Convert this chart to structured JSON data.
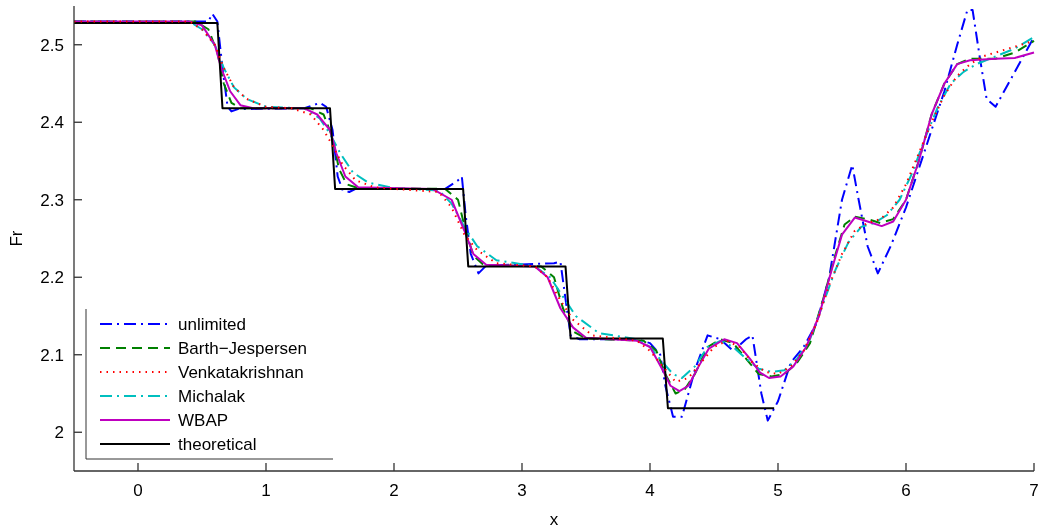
{
  "chart_data": {
    "type": "line",
    "xlabel": "x",
    "ylabel": "Fr",
    "xlim": [
      -0.5,
      7
    ],
    "ylim": [
      1.95,
      2.55
    ],
    "xticks": [
      0,
      1,
      2,
      3,
      4,
      5,
      6,
      7
    ],
    "yticks": [
      2,
      2.1,
      2.2,
      2.3,
      2.4,
      2.5
    ],
    "grid": false,
    "legend": "bottom left",
    "marker": "none",
    "series": [
      {
        "name": "unlimited",
        "color": "#0000ff",
        "line_style": "dashdot",
        "x": [
          -0.5,
          0.55,
          0.58,
          0.62,
          0.66,
          0.7,
          0.73,
          0.78,
          1.3,
          1.42,
          1.47,
          1.52,
          1.56,
          1.6,
          1.65,
          1.7,
          2.4,
          2.5,
          2.53,
          2.56,
          2.6,
          2.66,
          2.72,
          3.25,
          3.3,
          3.35,
          3.38,
          3.45,
          3.9,
          4.0,
          4.08,
          4.12,
          4.18,
          4.25,
          4.35,
          4.45,
          4.55,
          4.65,
          4.75,
          4.8,
          4.87,
          4.92,
          5.0,
          5.1,
          5.2,
          5.3,
          5.4,
          5.5,
          5.58,
          5.63,
          5.7,
          5.78,
          5.88,
          6.0,
          6.1,
          6.2,
          6.3,
          6.4,
          6.48,
          6.52,
          6.58,
          6.63,
          6.7,
          6.8,
          6.9,
          7.0
        ],
        "values": [
          2.53,
          2.53,
          2.54,
          2.53,
          2.47,
          2.42,
          2.414,
          2.417,
          2.418,
          2.425,
          2.42,
          2.39,
          2.33,
          2.312,
          2.31,
          2.314,
          2.314,
          2.325,
          2.33,
          2.28,
          2.23,
          2.205,
          2.215,
          2.218,
          2.22,
          2.16,
          2.125,
          2.12,
          2.12,
          2.115,
          2.1,
          2.06,
          2.02,
          2.02,
          2.08,
          2.125,
          2.12,
          2.105,
          2.12,
          2.125,
          2.05,
          2.015,
          2.04,
          2.09,
          2.11,
          2.14,
          2.2,
          2.3,
          2.345,
          2.3,
          2.24,
          2.205,
          2.24,
          2.29,
          2.34,
          2.39,
          2.44,
          2.5,
          2.545,
          2.545,
          2.48,
          2.43,
          2.42,
          2.45,
          2.48,
          2.51
        ]
      },
      {
        "name": "Barth−Jespersen",
        "color": "#008000",
        "line_style": "dashed",
        "x": [
          -0.5,
          0.45,
          0.55,
          0.62,
          0.67,
          0.73,
          0.8,
          0.9,
          1.35,
          1.45,
          1.52,
          1.57,
          1.63,
          1.72,
          2.4,
          2.5,
          2.56,
          2.62,
          2.7,
          3.15,
          3.25,
          3.32,
          3.4,
          3.5,
          3.95,
          4.05,
          4.12,
          4.2,
          4.27,
          4.35,
          4.45,
          4.55,
          4.65,
          4.75,
          4.85,
          4.95,
          5.05,
          5.15,
          5.25,
          5.35,
          5.45,
          5.52,
          5.6,
          5.7,
          5.8,
          5.9,
          6.0,
          6.1,
          6.2,
          6.3,
          6.4,
          6.5,
          6.7,
          6.85,
          7.0
        ],
        "values": [
          2.53,
          2.53,
          2.52,
          2.49,
          2.45,
          2.425,
          2.418,
          2.418,
          2.418,
          2.41,
          2.38,
          2.34,
          2.32,
          2.315,
          2.314,
          2.3,
          2.26,
          2.228,
          2.216,
          2.214,
          2.2,
          2.16,
          2.13,
          2.121,
          2.118,
          2.105,
          2.075,
          2.05,
          2.055,
          2.075,
          2.11,
          2.12,
          2.115,
          2.095,
          2.075,
          2.072,
          2.075,
          2.09,
          2.115,
          2.17,
          2.23,
          2.268,
          2.278,
          2.275,
          2.27,
          2.275,
          2.3,
          2.35,
          2.41,
          2.45,
          2.475,
          2.482,
          2.482,
          2.49,
          2.505
        ]
      },
      {
        "name": "Venkatakrishnan",
        "color": "#ff0000",
        "line_style": "dotted",
        "x": [
          -0.5,
          0.4,
          0.5,
          0.6,
          0.67,
          0.75,
          0.85,
          1.0,
          1.2,
          1.35,
          1.45,
          1.52,
          1.6,
          1.7,
          1.85,
          2.0,
          2.35,
          2.45,
          2.55,
          2.65,
          2.8,
          3.1,
          3.2,
          3.3,
          3.4,
          3.55,
          3.9,
          4.0,
          4.1,
          4.2,
          4.3,
          4.4,
          4.5,
          4.6,
          4.7,
          4.8,
          4.9,
          5.0,
          5.1,
          5.2,
          5.3,
          5.4,
          5.5,
          5.6,
          5.7,
          5.8,
          5.9,
          6.0,
          6.1,
          6.2,
          6.3,
          6.4,
          6.5,
          6.6,
          6.8,
          7.0
        ],
        "values": [
          2.53,
          2.53,
          2.52,
          2.5,
          2.47,
          2.445,
          2.43,
          2.42,
          2.418,
          2.41,
          2.39,
          2.37,
          2.345,
          2.325,
          2.316,
          2.314,
          2.31,
          2.29,
          2.255,
          2.235,
          2.218,
          2.214,
          2.2,
          2.17,
          2.145,
          2.125,
          2.118,
          2.105,
          2.085,
          2.065,
          2.07,
          2.09,
          2.11,
          2.118,
          2.11,
          2.09,
          2.078,
          2.075,
          2.085,
          2.105,
          2.14,
          2.19,
          2.23,
          2.26,
          2.27,
          2.275,
          2.29,
          2.32,
          2.36,
          2.4,
          2.435,
          2.46,
          2.475,
          2.485,
          2.495,
          2.505
        ]
      },
      {
        "name": "Michalak",
        "color": "#00bfbf",
        "line_style": "dashdot",
        "x": [
          -0.5,
          0.4,
          0.5,
          0.6,
          0.67,
          0.75,
          0.85,
          1.0,
          1.3,
          1.42,
          1.5,
          1.58,
          1.68,
          1.8,
          2.0,
          2.35,
          2.45,
          2.55,
          2.65,
          2.8,
          3.1,
          3.22,
          3.32,
          3.42,
          3.6,
          3.9,
          4.0,
          4.1,
          4.18,
          4.25,
          4.35,
          4.45,
          4.55,
          4.65,
          4.75,
          4.85,
          4.95,
          5.05,
          5.15,
          5.25,
          5.35,
          5.45,
          5.55,
          5.65,
          5.75,
          5.85,
          5.95,
          6.05,
          6.15,
          6.25,
          6.35,
          6.45,
          6.55,
          6.7,
          6.85,
          7.0
        ],
        "values": [
          2.53,
          2.53,
          2.52,
          2.5,
          2.47,
          2.445,
          2.43,
          2.42,
          2.418,
          2.405,
          2.385,
          2.36,
          2.335,
          2.322,
          2.315,
          2.312,
          2.295,
          2.265,
          2.24,
          2.222,
          2.214,
          2.2,
          2.175,
          2.15,
          2.128,
          2.12,
          2.11,
          2.09,
          2.075,
          2.07,
          2.085,
          2.11,
          2.118,
          2.11,
          2.095,
          2.082,
          2.078,
          2.08,
          2.095,
          2.12,
          2.165,
          2.21,
          2.245,
          2.265,
          2.27,
          2.28,
          2.3,
          2.335,
          2.38,
          2.42,
          2.45,
          2.465,
          2.475,
          2.485,
          2.495,
          2.51
        ]
      },
      {
        "name": "WBAP",
        "color": "#bf00bf",
        "line_style": "solid",
        "x": [
          -0.5,
          0.4,
          0.5,
          0.6,
          0.65,
          0.72,
          0.8,
          0.9,
          1.3,
          1.4,
          1.5,
          1.55,
          1.62,
          1.72,
          2.3,
          2.45,
          2.55,
          2.62,
          2.72,
          3.1,
          3.2,
          3.3,
          3.4,
          3.5,
          3.9,
          4.0,
          4.1,
          4.16,
          4.23,
          4.3,
          4.38,
          4.46,
          4.58,
          4.68,
          4.78,
          4.86,
          4.93,
          5.02,
          5.12,
          5.22,
          5.32,
          5.42,
          5.5,
          5.6,
          5.7,
          5.81,
          5.9,
          6.0,
          6.1,
          6.2,
          6.3,
          6.4,
          6.5,
          6.7,
          6.85,
          7.0
        ],
        "values": [
          2.53,
          2.53,
          2.525,
          2.5,
          2.47,
          2.44,
          2.422,
          2.418,
          2.418,
          2.41,
          2.39,
          2.36,
          2.33,
          2.316,
          2.314,
          2.3,
          2.26,
          2.23,
          2.216,
          2.214,
          2.2,
          2.16,
          2.135,
          2.122,
          2.118,
          2.11,
          2.08,
          2.06,
          2.053,
          2.06,
          2.085,
          2.108,
          2.12,
          2.115,
          2.095,
          2.077,
          2.07,
          2.072,
          2.085,
          2.11,
          2.15,
          2.21,
          2.255,
          2.277,
          2.272,
          2.266,
          2.272,
          2.3,
          2.35,
          2.41,
          2.45,
          2.475,
          2.48,
          2.482,
          2.483,
          2.49
        ]
      },
      {
        "name": "theoretical",
        "color": "#000000",
        "line_style": "solid",
        "x": [
          -0.5,
          0.62,
          0.66,
          1.5,
          1.54,
          2.54,
          2.58,
          3.34,
          3.38,
          4.1,
          4.14,
          4.97
        ],
        "values": [
          2.528,
          2.528,
          2.418,
          2.418,
          2.314,
          2.314,
          2.214,
          2.214,
          2.121,
          2.121,
          2.031,
          2.031
        ]
      }
    ]
  }
}
